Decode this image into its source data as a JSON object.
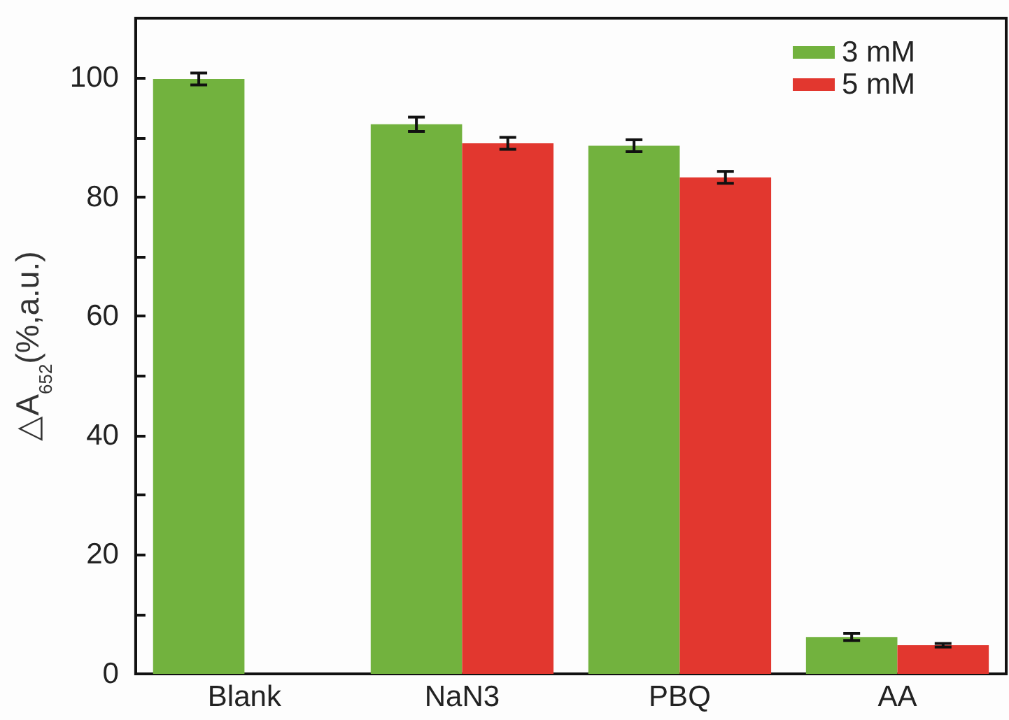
{
  "chart_data": {
    "type": "bar",
    "ylabel": "△A$_{652}$(%,a.u.)",
    "categories": [
      "Blank",
      "NaN3",
      "PBQ",
      "AA"
    ],
    "series": [
      {
        "name": "3 mM",
        "color": "#72b23e",
        "values": [
          99.8,
          92.2,
          88.6,
          6.2
        ],
        "errors": [
          1,
          1.2,
          1,
          0.6
        ]
      },
      {
        "name": "5 mM",
        "color": "#e2372f",
        "values": [
          null,
          89.0,
          83.3,
          4.8
        ],
        "errors": [
          null,
          1,
          1,
          0.3
        ]
      }
    ],
    "ylim": [
      0,
      110
    ],
    "yticks": [
      0,
      {
        "value": 10,
        "label": null
      },
      20,
      {
        "value": 30,
        "label": null
      },
      40,
      {
        "value": 50,
        "label": null
      },
      60,
      {
        "value": 70,
        "label": null
      },
      80,
      {
        "value": 90,
        "label": null
      },
      100
    ],
    "grid": false,
    "legend": "top right"
  }
}
